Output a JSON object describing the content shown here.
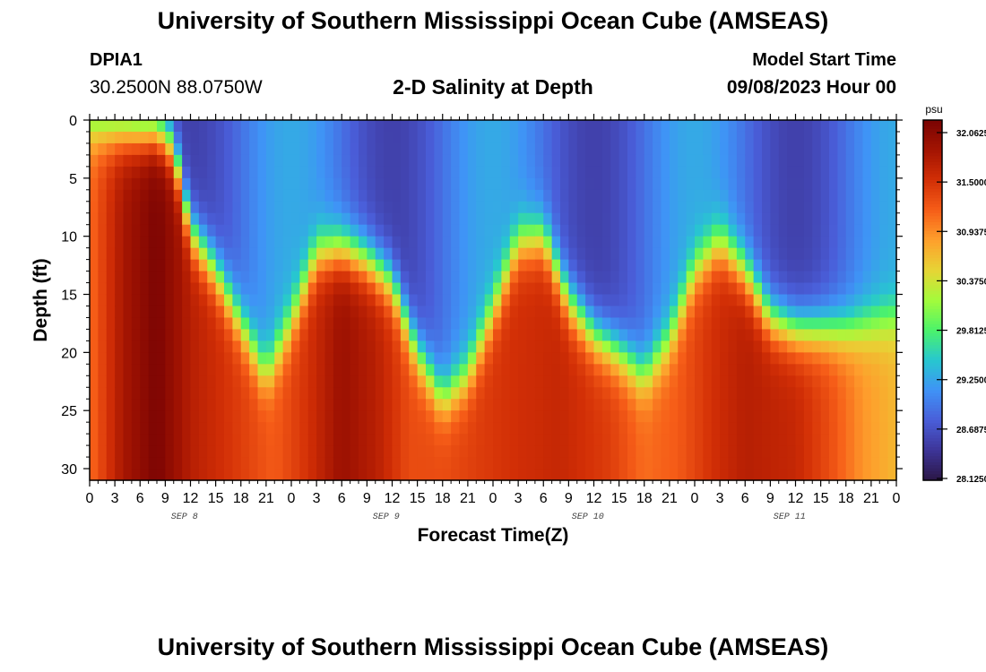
{
  "header": {
    "title": "University of Southern Mississippi Ocean Cube (AMSEAS)",
    "station_id": "DPIA1",
    "coordinates": "30.2500N  88.0750W",
    "subtitle": "2-D Salinity at Depth",
    "model_label": "Model Start Time",
    "model_start": "09/08/2023 Hour 00"
  },
  "footer": {
    "title": "University of Southern Mississippi Ocean Cube (AMSEAS)"
  },
  "chart_data": {
    "type": "heatmap",
    "title": "2-D Salinity at Depth",
    "xlabel": "Forecast Time(Z)",
    "ylabel": "Depth (ft)",
    "x_range_hours": [
      0,
      96
    ],
    "y_range_ft": [
      0,
      31
    ],
    "x_tick_labels": [
      "0",
      "3",
      "6",
      "9",
      "12",
      "15",
      "18",
      "21",
      "0",
      "3",
      "6",
      "9",
      "12",
      "15",
      "18",
      "21",
      "0",
      "3",
      "6",
      "9",
      "12",
      "15",
      "18",
      "21",
      "0",
      "3",
      "6",
      "9",
      "12",
      "15",
      "18",
      "21",
      "0"
    ],
    "day_labels": [
      "SEP 8",
      "SEP 9",
      "SEP 10",
      "SEP 11"
    ],
    "y_ticks": [
      0,
      5,
      10,
      15,
      20,
      25,
      30
    ],
    "y_tick_labels": [
      "0",
      "5",
      "10",
      "15",
      "20",
      "25",
      "30"
    ],
    "colorbar": {
      "unit": "psu",
      "levels": [
        28.125,
        28.6875,
        29.25,
        29.8125,
        30.375,
        30.9375,
        31.5,
        32.0625
      ],
      "labels": [
        "28.1250",
        "28.6875",
        "29.2500",
        "29.8125",
        "30.3750",
        "30.9375",
        "31.5000",
        "32.0625"
      ],
      "colors": [
        "#2b1646",
        "#3d3598",
        "#4a5ed9",
        "#3f93f6",
        "#27c7cf",
        "#4cf36a",
        "#a4fb3b",
        "#e7d435",
        "#fe9f2c",
        "#f65d18",
        "#d22f06",
        "#a31402",
        "#7a0403"
      ]
    },
    "halocline_depth_ft_by_hour": {
      "hours": [
        0,
        2,
        4,
        6,
        8,
        10,
        12,
        15,
        18,
        21,
        24,
        27,
        30,
        33,
        36,
        39,
        42,
        45,
        48,
        51,
        54,
        57,
        60,
        63,
        66,
        69,
        72,
        75,
        78,
        81,
        84,
        87,
        90,
        93,
        96
      ],
      "depth": [
        0.5,
        0.8,
        0.9,
        1.0,
        0.9,
        2.5,
        9.5,
        13.0,
        17.5,
        22.0,
        17.5,
        11.5,
        11.0,
        12.0,
        14.0,
        20.0,
        24.0,
        22.0,
        16.5,
        10.5,
        10.0,
        15.5,
        18.5,
        20.0,
        22.0,
        19.0,
        13.0,
        10.5,
        13.0,
        17.0,
        18.0,
        18.0,
        18.0,
        17.5,
        17.0
      ]
    },
    "deep_salinity_psu_by_hour": {
      "hours": [
        0,
        4,
        8,
        12,
        18,
        22,
        26,
        30,
        34,
        38,
        42,
        46,
        50,
        56,
        62,
        66,
        70,
        74,
        78,
        84,
        88,
        92,
        96
      ],
      "value": [
        31.0,
        31.7,
        32.05,
        31.6,
        31.3,
        31.1,
        31.4,
        31.8,
        31.6,
        31.2,
        31.2,
        31.3,
        31.4,
        31.5,
        31.3,
        31.0,
        31.1,
        31.4,
        31.6,
        31.5,
        31.2,
        30.8,
        30.6
      ]
    }
  }
}
